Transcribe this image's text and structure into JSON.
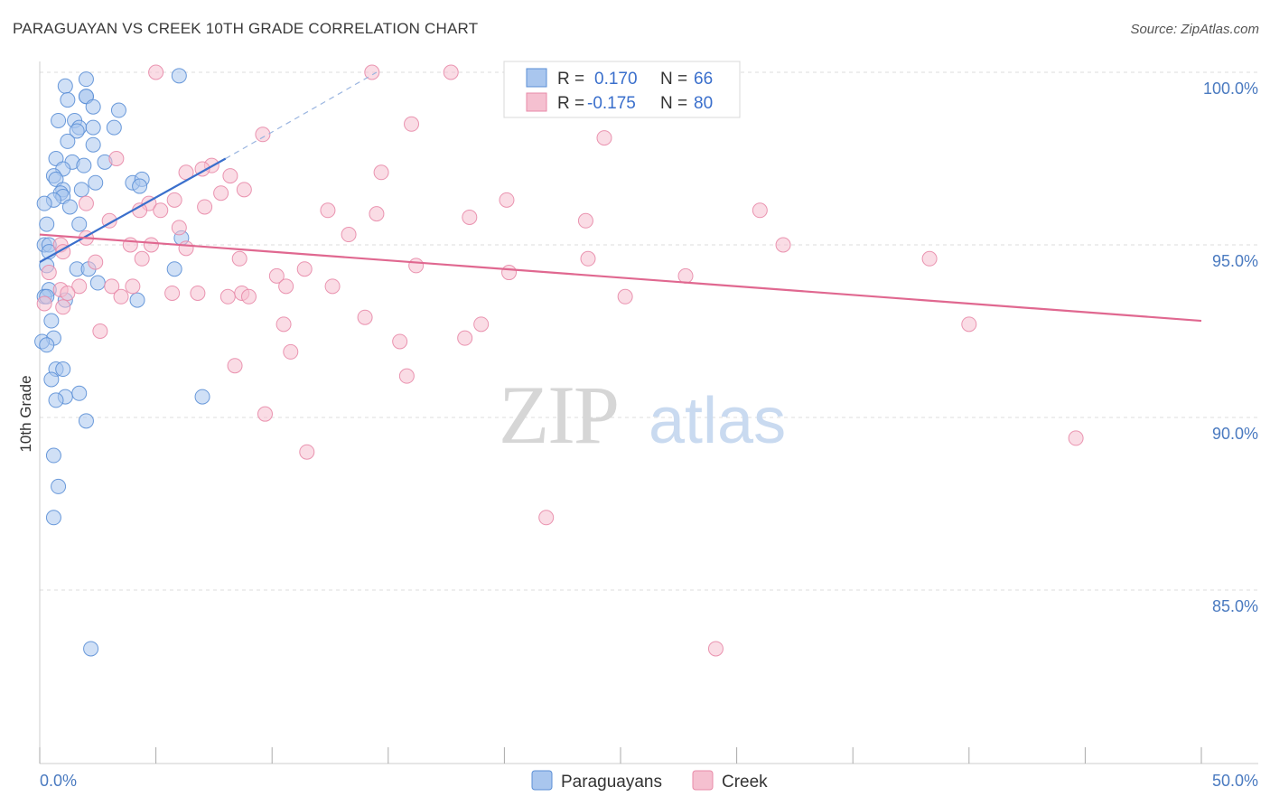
{
  "title": "PARAGUAYAN VS CREEK 10TH GRADE CORRELATION CHART",
  "source": "Source: ZipAtlas.com",
  "colors": {
    "paraguayans_fill": "#a9c6ee",
    "paraguayans_stroke": "#5b8fd6",
    "paraguayans_line": "#3a6fcc",
    "creek_fill": "#f5c0d0",
    "creek_stroke": "#e88aa8",
    "creek_line": "#e06890",
    "value_text": "#3a6fcc"
  },
  "legend_box": {
    "rows": [
      {
        "r_label": "R =",
        "r_value": "0.170",
        "n_label": "N =",
        "n_value": "66"
      },
      {
        "r_label": "R =",
        "r_value": "-0.175",
        "n_label": "N =",
        "n_value": "80"
      }
    ]
  },
  "bottom_legend": {
    "items": [
      {
        "label": "Paraguayans"
      },
      {
        "label": "Creek"
      }
    ]
  },
  "watermark": {
    "zip": "ZIP",
    "atlas": "atlas"
  },
  "chart_data": {
    "type": "scatter",
    "title": "PARAGUAYAN VS CREEK 10TH GRADE CORRELATION CHART",
    "xlabel": "",
    "ylabel": "10th Grade",
    "xlim": [
      0,
      50
    ],
    "ylim": [
      80.5,
      100.8
    ],
    "x_tick_labels": {
      "left": "0.0%",
      "right": "50.0%"
    },
    "y_ticks": [
      {
        "value": 100,
        "label": "100.0%"
      },
      {
        "value": 95,
        "label": "95.0%"
      },
      {
        "value": 90,
        "label": "90.0%"
      },
      {
        "value": 85,
        "label": "85.0%"
      }
    ],
    "grid": true,
    "legend_position": "top-center",
    "series": [
      {
        "name": "Paraguayans",
        "r": 0.17,
        "n": 66,
        "trend": {
          "x": [
            0.0,
            8.0
          ],
          "y": [
            94.5,
            97.5
          ]
        },
        "trend_extension": {
          "x": [
            8.0,
            14.5
          ],
          "y": [
            97.5,
            100.0
          ]
        },
        "points": [
          [
            2.0,
            99.8
          ],
          [
            6.0,
            99.9
          ],
          [
            1.1,
            99.6
          ],
          [
            2.0,
            99.3
          ],
          [
            1.2,
            99.2
          ],
          [
            2.0,
            99.3
          ],
          [
            2.3,
            99.0
          ],
          [
            3.4,
            98.9
          ],
          [
            0.8,
            98.6
          ],
          [
            1.5,
            98.6
          ],
          [
            1.7,
            98.4
          ],
          [
            2.3,
            98.4
          ],
          [
            3.2,
            98.4
          ],
          [
            1.6,
            98.3
          ],
          [
            1.2,
            98.0
          ],
          [
            2.3,
            97.9
          ],
          [
            0.7,
            97.5
          ],
          [
            1.4,
            97.4
          ],
          [
            1.9,
            97.3
          ],
          [
            2.8,
            97.4
          ],
          [
            1.0,
            97.2
          ],
          [
            0.6,
            97.0
          ],
          [
            0.7,
            96.9
          ],
          [
            2.4,
            96.8
          ],
          [
            4.0,
            96.8
          ],
          [
            4.4,
            96.9
          ],
          [
            4.3,
            96.7
          ],
          [
            1.8,
            96.6
          ],
          [
            1.0,
            96.6
          ],
          [
            0.9,
            96.5
          ],
          [
            1.0,
            96.4
          ],
          [
            0.6,
            96.3
          ],
          [
            0.2,
            96.2
          ],
          [
            1.3,
            96.1
          ],
          [
            0.3,
            95.6
          ],
          [
            1.7,
            95.6
          ],
          [
            6.1,
            95.2
          ],
          [
            0.2,
            95.0
          ],
          [
            0.4,
            95.0
          ],
          [
            0.4,
            94.8
          ],
          [
            0.3,
            94.4
          ],
          [
            1.6,
            94.3
          ],
          [
            2.1,
            94.3
          ],
          [
            5.8,
            94.3
          ],
          [
            2.5,
            93.9
          ],
          [
            0.4,
            93.7
          ],
          [
            0.2,
            93.5
          ],
          [
            1.1,
            93.4
          ],
          [
            4.2,
            93.4
          ],
          [
            0.5,
            92.8
          ],
          [
            0.6,
            92.3
          ],
          [
            0.1,
            92.2
          ],
          [
            0.3,
            92.1
          ],
          [
            0.7,
            91.4
          ],
          [
            1.0,
            91.4
          ],
          [
            0.5,
            91.1
          ],
          [
            1.7,
            90.7
          ],
          [
            1.1,
            90.6
          ],
          [
            7.0,
            90.6
          ],
          [
            0.7,
            90.5
          ],
          [
            2.0,
            89.9
          ],
          [
            0.6,
            88.9
          ],
          [
            0.8,
            88.0
          ],
          [
            0.6,
            87.1
          ],
          [
            2.2,
            83.3
          ],
          [
            0.3,
            93.5
          ]
        ]
      },
      {
        "name": "Creek",
        "r": -0.175,
        "n": 80,
        "trend": {
          "x": [
            0.0,
            50.0
          ],
          "y": [
            95.3,
            92.8
          ]
        },
        "points": [
          [
            5.0,
            100.0
          ],
          [
            14.3,
            100.0
          ],
          [
            17.7,
            100.0
          ],
          [
            22.6,
            100.0
          ],
          [
            22.9,
            100.0
          ],
          [
            16.0,
            98.5
          ],
          [
            9.6,
            98.2
          ],
          [
            24.3,
            98.1
          ],
          [
            3.3,
            97.5
          ],
          [
            7.4,
            97.3
          ],
          [
            7.0,
            97.2
          ],
          [
            6.3,
            97.1
          ],
          [
            14.7,
            97.1
          ],
          [
            8.2,
            97.0
          ],
          [
            8.8,
            96.6
          ],
          [
            2.0,
            96.2
          ],
          [
            7.8,
            96.5
          ],
          [
            20.1,
            96.3
          ],
          [
            5.8,
            96.3
          ],
          [
            4.7,
            96.2
          ],
          [
            5.2,
            96.0
          ],
          [
            7.1,
            96.1
          ],
          [
            4.3,
            96.0
          ],
          [
            12.4,
            96.0
          ],
          [
            14.5,
            95.9
          ],
          [
            18.5,
            95.8
          ],
          [
            23.5,
            95.7
          ],
          [
            31.0,
            96.0
          ],
          [
            3.0,
            95.7
          ],
          [
            6.0,
            95.5
          ],
          [
            13.3,
            95.3
          ],
          [
            2.0,
            95.2
          ],
          [
            4.8,
            95.0
          ],
          [
            0.9,
            95.0
          ],
          [
            3.9,
            95.0
          ],
          [
            1.0,
            94.8
          ],
          [
            32.0,
            95.0
          ],
          [
            6.3,
            94.9
          ],
          [
            8.6,
            94.6
          ],
          [
            4.4,
            94.6
          ],
          [
            2.4,
            94.5
          ],
          [
            23.6,
            94.6
          ],
          [
            38.3,
            94.6
          ],
          [
            0.4,
            94.2
          ],
          [
            16.2,
            94.4
          ],
          [
            11.4,
            94.3
          ],
          [
            20.2,
            94.2
          ],
          [
            27.8,
            94.1
          ],
          [
            10.2,
            94.1
          ],
          [
            1.7,
            93.8
          ],
          [
            0.9,
            93.7
          ],
          [
            3.1,
            93.8
          ],
          [
            4.0,
            93.8
          ],
          [
            10.6,
            93.8
          ],
          [
            12.6,
            93.8
          ],
          [
            1.2,
            93.6
          ],
          [
            5.7,
            93.6
          ],
          [
            6.8,
            93.6
          ],
          [
            8.1,
            93.5
          ],
          [
            8.7,
            93.6
          ],
          [
            9.0,
            93.5
          ],
          [
            3.5,
            93.5
          ],
          [
            25.2,
            93.5
          ],
          [
            1.0,
            93.2
          ],
          [
            14.0,
            92.9
          ],
          [
            10.5,
            92.7
          ],
          [
            19.0,
            92.7
          ],
          [
            40.0,
            92.7
          ],
          [
            2.6,
            92.5
          ],
          [
            15.5,
            92.2
          ],
          [
            18.3,
            92.3
          ],
          [
            10.8,
            91.9
          ],
          [
            8.4,
            91.5
          ],
          [
            15.8,
            91.2
          ],
          [
            9.7,
            90.1
          ],
          [
            11.5,
            89.0
          ],
          [
            44.6,
            89.4
          ],
          [
            21.8,
            87.1
          ],
          [
            29.1,
            83.3
          ],
          [
            0.2,
            93.3
          ]
        ]
      }
    ]
  }
}
